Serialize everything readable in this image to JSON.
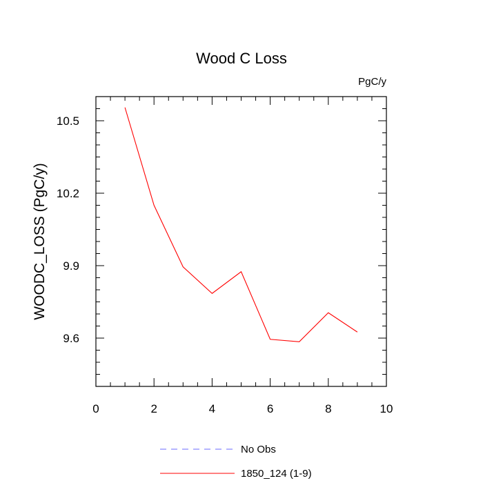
{
  "chart_data": {
    "type": "line",
    "title": "Wood C Loss",
    "units_label": "PgC/y",
    "xlabel": "",
    "ylabel": "WOODC_LOSS  (PgC/y)",
    "xlim": [
      0,
      10
    ],
    "ylim": [
      9.4,
      10.6
    ],
    "x_ticks": [
      0,
      2,
      4,
      6,
      8,
      10
    ],
    "x_tick_labels": [
      "0",
      "2",
      "4",
      "6",
      "8",
      "10"
    ],
    "y_ticks": [
      9.6,
      9.9,
      10.2,
      10.5
    ],
    "y_tick_labels": [
      "9.6",
      "9.9",
      "10.2",
      "10.5"
    ],
    "grid": false,
    "legend_position": "bottom",
    "series": [
      {
        "name": "No Obs",
        "color": "#6a6aff",
        "dash": "dashed",
        "x": [],
        "values": []
      },
      {
        "name": "1850_124 (1-9)",
        "color": "#ff0000",
        "dash": "solid",
        "x": [
          1,
          2,
          3,
          4,
          5,
          6,
          7,
          8,
          9
        ],
        "values": [
          10.555,
          10.15,
          9.895,
          9.785,
          9.875,
          9.595,
          9.585,
          9.705,
          9.625
        ]
      }
    ]
  }
}
